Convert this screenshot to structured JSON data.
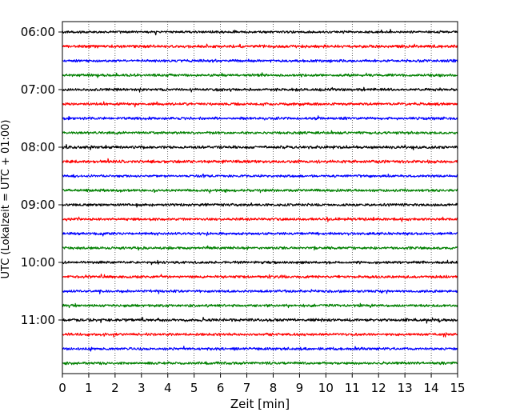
{
  "chart_data": {
    "type": "line",
    "title": "",
    "xlabel": "Zeit  [min]",
    "ylabel": "UTC (Lokalzeit = UTC + 01:00)",
    "xlim": [
      0,
      15
    ],
    "x_ticks": [
      "0",
      "1",
      "2",
      "3",
      "4",
      "5",
      "6",
      "7",
      "8",
      "9",
      "10",
      "11",
      "12",
      "13",
      "14",
      "15"
    ],
    "y_ticks": [
      "06:00",
      "07:00",
      "08:00",
      "09:00",
      "10:00",
      "11:00"
    ],
    "grid": {
      "vertical_dotted": true,
      "horizontal": false
    },
    "trace_interval_minutes": 15,
    "trace_start": "06:00",
    "trace_colors": [
      "#000000",
      "#ff0000",
      "#0000ff",
      "#008000"
    ],
    "traces": [
      {
        "start": "06:00",
        "color": "#000000",
        "amplitude": 0.9
      },
      {
        "start": "06:15",
        "color": "#ff0000",
        "amplitude": 1.1
      },
      {
        "start": "06:30",
        "color": "#0000ff",
        "amplitude": 1.0
      },
      {
        "start": "06:45",
        "color": "#008000",
        "amplitude": 1.0
      },
      {
        "start": "07:00",
        "color": "#000000",
        "amplitude": 1.0
      },
      {
        "start": "07:15",
        "color": "#ff0000",
        "amplitude": 1.0
      },
      {
        "start": "07:30",
        "color": "#0000ff",
        "amplitude": 1.0
      },
      {
        "start": "07:45",
        "color": "#008000",
        "amplitude": 1.0
      },
      {
        "start": "08:00",
        "color": "#000000",
        "amplitude": 1.1
      },
      {
        "start": "08:15",
        "color": "#ff0000",
        "amplitude": 1.1
      },
      {
        "start": "08:30",
        "color": "#0000ff",
        "amplitude": 0.9
      },
      {
        "start": "08:45",
        "color": "#008000",
        "amplitude": 1.0
      },
      {
        "start": "09:00",
        "color": "#000000",
        "amplitude": 1.0
      },
      {
        "start": "09:15",
        "color": "#ff0000",
        "amplitude": 1.0
      },
      {
        "start": "09:30",
        "color": "#0000ff",
        "amplitude": 1.0
      },
      {
        "start": "09:45",
        "color": "#008000",
        "amplitude": 1.0
      },
      {
        "start": "10:00",
        "color": "#000000",
        "amplitude": 1.0
      },
      {
        "start": "10:15",
        "color": "#ff0000",
        "amplitude": 1.0
      },
      {
        "start": "10:30",
        "color": "#0000ff",
        "amplitude": 1.0
      },
      {
        "start": "10:45",
        "color": "#008000",
        "amplitude": 1.0
      },
      {
        "start": "11:00",
        "color": "#000000",
        "amplitude": 1.1
      },
      {
        "start": "11:15",
        "color": "#ff0000",
        "amplitude": 1.0
      },
      {
        "start": "11:30",
        "color": "#0000ff",
        "amplitude": 1.0
      },
      {
        "start": "11:45",
        "color": "#008000",
        "amplitude": 1.0
      }
    ]
  }
}
